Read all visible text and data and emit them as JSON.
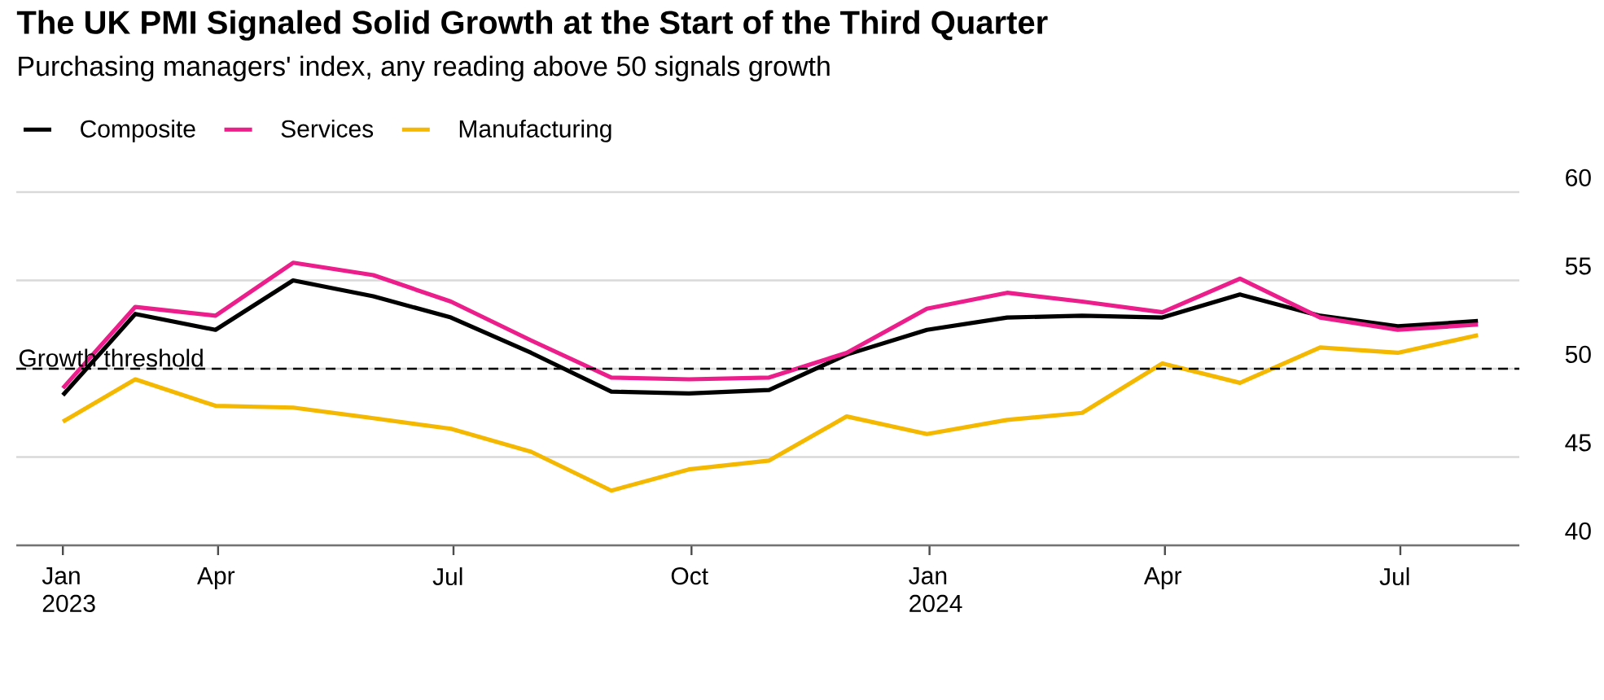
{
  "chart_data": {
    "type": "line",
    "title": "The UK PMI Signaled Solid Growth at the Start of the Third Quarter",
    "subtitle": "Purchasing managers' index, any reading above 50 signals growth",
    "x": [
      "2023-01-31",
      "2023-02-28",
      "2023-03-31",
      "2023-04-30",
      "2023-05-31",
      "2023-06-30",
      "2023-07-31",
      "2023-08-31",
      "2023-09-30",
      "2023-10-31",
      "2023-11-30",
      "2023-12-31",
      "2024-01-31",
      "2024-02-29",
      "2024-03-31",
      "2024-04-30",
      "2024-05-31",
      "2024-06-30",
      "2024-07-31"
    ],
    "series": [
      {
        "name": "Composite",
        "color": "#000000",
        "values": [
          48.5,
          53.1,
          52.2,
          55.0,
          54.1,
          52.9,
          50.9,
          48.7,
          48.6,
          48.8,
          50.8,
          52.2,
          52.9,
          53.0,
          52.9,
          54.2,
          53.0,
          52.4,
          52.7
        ]
      },
      {
        "name": "Services",
        "color": "#ec1e8c",
        "values": [
          48.9,
          53.5,
          53.0,
          56.0,
          55.3,
          53.8,
          51.6,
          49.5,
          49.4,
          49.5,
          50.9,
          53.4,
          54.3,
          53.8,
          53.2,
          55.1,
          52.9,
          52.2,
          52.5
        ]
      },
      {
        "name": "Manufacturing",
        "color": "#f5b800",
        "values": [
          47.0,
          49.4,
          47.9,
          47.8,
          47.2,
          46.6,
          45.3,
          43.1,
          44.3,
          44.8,
          47.3,
          46.3,
          47.1,
          47.5,
          50.3,
          49.2,
          51.2,
          50.9,
          51.9
        ]
      }
    ],
    "xlim": [
      "2023-01-13",
      "2024-08-16"
    ],
    "xticks": [
      {
        "value": "2023-01-31",
        "label": "Jan 2023"
      },
      {
        "value": "2023-04-01",
        "label": "Apr"
      },
      {
        "value": "2023-07-01",
        "label": "Jul"
      },
      {
        "value": "2023-10-01",
        "label": "Oct"
      },
      {
        "value": "2024-01-01",
        "label": "Jan 2024"
      },
      {
        "value": "2024-04-01",
        "label": "Apr"
      },
      {
        "value": "2024-07-01",
        "label": "Jul"
      }
    ],
    "ylim": [
      40,
      60
    ],
    "yticks": [
      40,
      45,
      50,
      55,
      60
    ],
    "ref_lines": [
      {
        "axis": "y",
        "value": 50,
        "label": "Growth threshold",
        "line_style": "dashed",
        "color": "#000000"
      }
    ],
    "grid": "y",
    "legend": "top left"
  }
}
